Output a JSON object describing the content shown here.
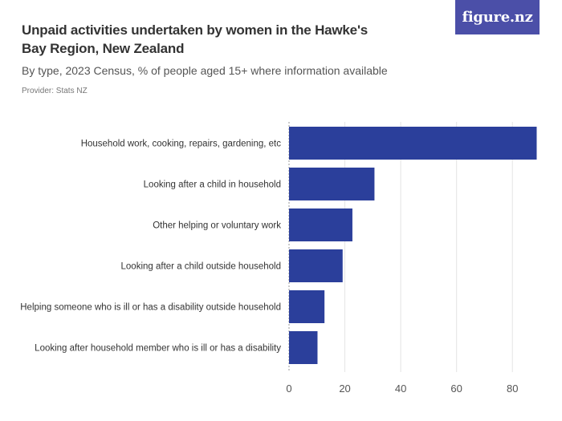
{
  "header": {
    "title": "Unpaid activities undertaken by women in the Hawke's Bay Region, New Zealand",
    "subtitle": "By type, 2023 Census, % of people aged 15+ where information available",
    "provider": "Provider: Stats NZ",
    "logo_text": "figure.nz"
  },
  "colors": {
    "bar": "#2b3f9b",
    "logo_bg": "#4b4fa8",
    "grid": "#e4e4e4"
  },
  "chart_data": {
    "type": "bar",
    "orientation": "horizontal",
    "categories": [
      "Household work, cooking, repairs, gardening, etc",
      "Looking after a child in household",
      "Other helping or voluntary work",
      "Looking after a child outside household",
      "Helping someone who is ill or has a disability outside household",
      "Looking after household member who is ill or has a disability"
    ],
    "values": [
      88.7,
      30.6,
      22.7,
      19.2,
      12.7,
      10.2
    ],
    "xlim": [
      0,
      90
    ],
    "xticks": [
      0,
      20,
      40,
      60,
      80
    ],
    "grid": true,
    "xlabel": "",
    "ylabel": ""
  }
}
